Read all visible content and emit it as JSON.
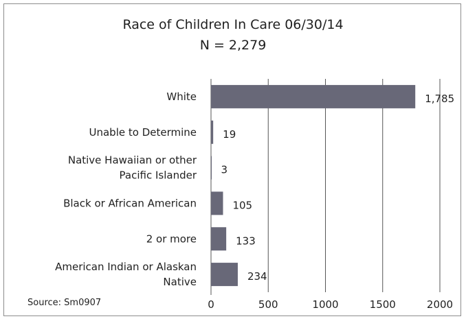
{
  "chart_data": {
    "type": "bar",
    "orientation": "horizontal",
    "title": "Race of Children  In Care 06/30/14",
    "subtitle": "N = 2,279",
    "source": "Source: Sm0907",
    "categories": [
      [
        "White"
      ],
      [
        "Unable to Determine"
      ],
      [
        "Native Hawaiian or other",
        "Pacific Islander"
      ],
      [
        "Black or African American"
      ],
      [
        "2 or more"
      ],
      [
        "American Indian or Alaskan",
        "Native"
      ]
    ],
    "values": [
      1785,
      19,
      3,
      105,
      133,
      234
    ],
    "value_labels": [
      "1,785",
      "19",
      "3",
      "105",
      "133",
      "234"
    ],
    "xlim": [
      0,
      2000
    ],
    "xticks": [
      0,
      500,
      1000,
      1500,
      2000
    ],
    "grid": true,
    "bar_color": "#686878"
  }
}
